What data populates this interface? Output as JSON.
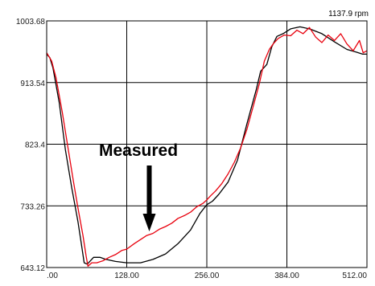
{
  "header": {
    "rpm_label": "1137.9 rpm"
  },
  "chart_data": {
    "type": "line",
    "title": "",
    "xlabel": "",
    "ylabel": "",
    "xlim": [
      0,
      512
    ],
    "ylim": [
      643.12,
      1003.68
    ],
    "grid": true,
    "x_tick_labels": [
      ".00",
      "128.00",
      "256.00",
      "384.00",
      "512.00"
    ],
    "y_tick_labels": [
      "1003.68",
      "913.54",
      "823.4",
      "733.26",
      "643.12"
    ],
    "x_ticks": [
      0,
      128,
      256,
      384,
      512
    ],
    "y_ticks": [
      1003.68,
      913.54,
      823.4,
      733.26,
      643.12
    ],
    "annotation": {
      "text": "Measured",
      "arrow_x": 164,
      "arrow_y": 696
    },
    "series": [
      {
        "color": "#000000",
        "points": [
          [
            0,
            955
          ],
          [
            5,
            950
          ],
          [
            10,
            935
          ],
          [
            20,
            885
          ],
          [
            30,
            815
          ],
          [
            40,
            760
          ],
          [
            50,
            710
          ],
          [
            55,
            680
          ],
          [
            60,
            650
          ],
          [
            65,
            648
          ],
          [
            75,
            658
          ],
          [
            85,
            658
          ],
          [
            95,
            655
          ],
          [
            110,
            652
          ],
          [
            128,
            650
          ],
          [
            150,
            650
          ],
          [
            170,
            655
          ],
          [
            190,
            663
          ],
          [
            210,
            678
          ],
          [
            230,
            698
          ],
          [
            245,
            722
          ],
          [
            256,
            735
          ],
          [
            265,
            740
          ],
          [
            275,
            750
          ],
          [
            290,
            768
          ],
          [
            305,
            800
          ],
          [
            320,
            853
          ],
          [
            335,
            903
          ],
          [
            342,
            930
          ],
          [
            352,
            940
          ],
          [
            360,
            966
          ],
          [
            368,
            981
          ],
          [
            378,
            985
          ],
          [
            390,
            992
          ],
          [
            405,
            995
          ],
          [
            420,
            992
          ],
          [
            440,
            985
          ],
          [
            460,
            973
          ],
          [
            480,
            962
          ],
          [
            495,
            958
          ],
          [
            505,
            955
          ],
          [
            512,
            955
          ]
        ]
      },
      {
        "color": "#e8000d",
        "points": [
          [
            0,
            957
          ],
          [
            8,
            945
          ],
          [
            15,
            920
          ],
          [
            25,
            870
          ],
          [
            35,
            813
          ],
          [
            43,
            768
          ],
          [
            50,
            730
          ],
          [
            58,
            690
          ],
          [
            63,
            660
          ],
          [
            66,
            645
          ],
          [
            72,
            650
          ],
          [
            80,
            650
          ],
          [
            90,
            653
          ],
          [
            100,
            658
          ],
          [
            110,
            662
          ],
          [
            120,
            668
          ],
          [
            128,
            670
          ],
          [
            140,
            678
          ],
          [
            150,
            684
          ],
          [
            160,
            690
          ],
          [
            170,
            693
          ],
          [
            180,
            699
          ],
          [
            190,
            703
          ],
          [
            200,
            708
          ],
          [
            210,
            715
          ],
          [
            220,
            719
          ],
          [
            230,
            724
          ],
          [
            240,
            732
          ],
          [
            250,
            737
          ],
          [
            256,
            742
          ],
          [
            262,
            748
          ],
          [
            270,
            755
          ],
          [
            280,
            766
          ],
          [
            290,
            780
          ],
          [
            300,
            797
          ],
          [
            310,
            818
          ],
          [
            320,
            845
          ],
          [
            330,
            878
          ],
          [
            340,
            912
          ],
          [
            348,
            945
          ],
          [
            356,
            962
          ],
          [
            362,
            970
          ],
          [
            370,
            978
          ],
          [
            380,
            983
          ],
          [
            390,
            982
          ],
          [
            400,
            990
          ],
          [
            410,
            985
          ],
          [
            420,
            994
          ],
          [
            430,
            980
          ],
          [
            440,
            972
          ],
          [
            450,
            983
          ],
          [
            460,
            975
          ],
          [
            470,
            985
          ],
          [
            480,
            970
          ],
          [
            490,
            960
          ],
          [
            500,
            975
          ],
          [
            506,
            957
          ],
          [
            512,
            960
          ]
        ]
      }
    ]
  }
}
